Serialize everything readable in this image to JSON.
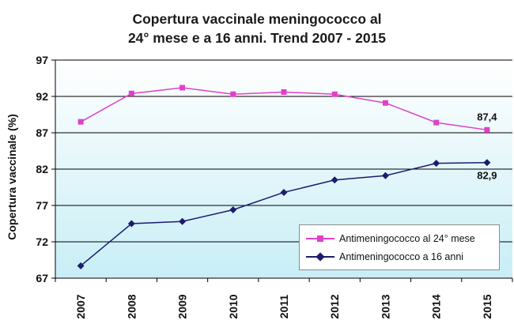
{
  "chart_data": {
    "type": "line",
    "title_line1": "Copertura vaccinale meningococco al",
    "title_line2": "24° mese e a 16 anni.  Trend 2007 - 2015",
    "ylabel": "Copertura vaccinale (%)",
    "xlabel": "",
    "categories": [
      "2007",
      "2008",
      "2009",
      "2010",
      "2011",
      "2012",
      "2013",
      "2014",
      "2015"
    ],
    "ylim": [
      67,
      97
    ],
    "yticks": [
      67,
      72,
      77,
      82,
      87,
      92,
      97
    ],
    "grid": true,
    "legend_position": "bottom-right",
    "series": [
      {
        "name": "Antimeningococco al 24° mese",
        "color": "#e040c8",
        "marker": "square",
        "values": [
          88.5,
          92.4,
          93.2,
          92.3,
          92.6,
          92.3,
          91.1,
          88.4,
          87.4
        ],
        "labels": {
          "8": "87,4"
        }
      },
      {
        "name": "Antimeningococco a 16 anni",
        "color": "#1c1c6e",
        "marker": "diamond",
        "values": [
          68.7,
          74.5,
          74.8,
          76.4,
          78.8,
          80.5,
          81.1,
          82.8,
          82.9
        ],
        "labels": {
          "8": "82,9"
        }
      }
    ]
  }
}
